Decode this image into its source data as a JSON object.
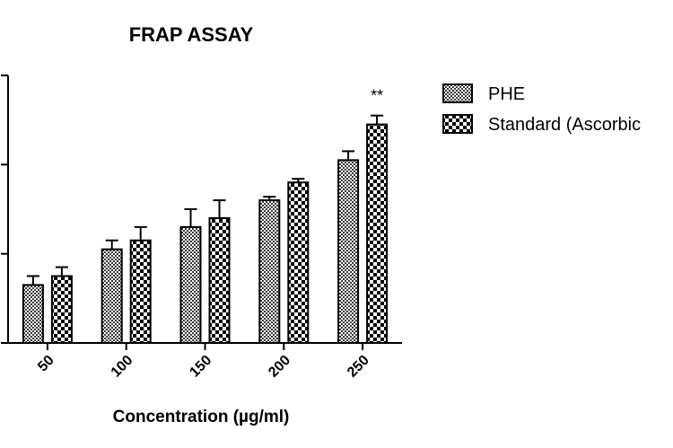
{
  "chart_data": {
    "type": "bar",
    "title": "FRAP ASSAY",
    "xlabel": "Concentration (µg/ml)",
    "ylabel": "",
    "categories": [
      "50",
      "100",
      "150",
      "200",
      "250"
    ],
    "ylim": [
      0,
      0.3
    ],
    "series": [
      {
        "name": "PHE",
        "values": [
          0.065,
          0.105,
          0.13,
          0.16,
          0.205
        ],
        "errors": [
          0.01,
          0.01,
          0.02,
          0.004,
          0.01
        ],
        "pattern": "fine-check"
      },
      {
        "name": "Standard (Ascorbic",
        "values": [
          0.075,
          0.115,
          0.14,
          0.18,
          0.245
        ],
        "errors": [
          0.01,
          0.015,
          0.02,
          0.004,
          0.01
        ],
        "pattern": "coarse-check"
      }
    ],
    "annotations": [
      {
        "category": "250",
        "series": "Standard (Ascorbic",
        "text": "**"
      }
    ],
    "legend": "right"
  }
}
